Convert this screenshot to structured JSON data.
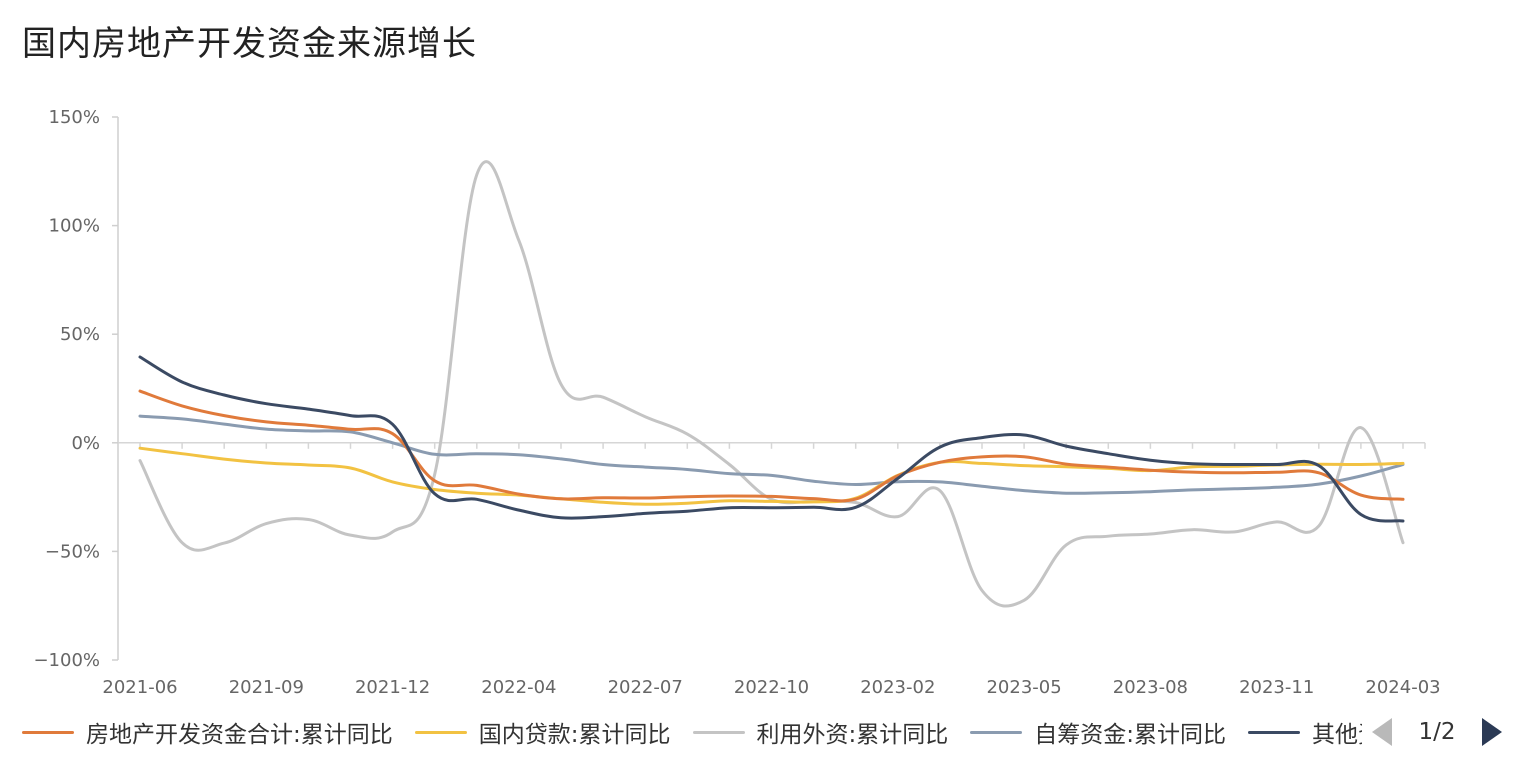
{
  "chart_data": {
    "type": "line",
    "title": "国内房地产开发资金来源增长",
    "x": [
      "2021-06",
      "2021-07",
      "2021-08",
      "2021-09",
      "2021-10",
      "2021-11",
      "2021-12",
      "2022-02",
      "2022-03",
      "2022-04",
      "2022-05",
      "2022-06",
      "2022-07",
      "2022-08",
      "2022-09",
      "2022-10",
      "2022-11",
      "2022-12",
      "2023-02",
      "2023-03",
      "2023-04",
      "2023-05",
      "2023-06",
      "2023-07",
      "2023-08",
      "2023-09",
      "2023-10",
      "2023-11",
      "2023-12",
      "2024-02",
      "2024-03"
    ],
    "x_tick_labels": [
      "2021-06",
      "2021-09",
      "2021-12",
      "2022-04",
      "2022-07",
      "2022-10",
      "2023-02",
      "2023-05",
      "2023-08",
      "2023-11",
      "2024-03"
    ],
    "ylim": [
      -100,
      150
    ],
    "y_ticks": [
      150,
      100,
      50,
      0,
      -50,
      -100
    ],
    "y_tick_labels": [
      "150%",
      "100%",
      "50%",
      "0%",
      "−50%",
      "−100%"
    ],
    "grid": false,
    "legend_position": "bottom",
    "series": [
      {
        "name": "房地产开发资金合计:累计同比",
        "color": "#e07a3b",
        "values": [
          23.8,
          17.0,
          12.5,
          9.6,
          8.1,
          6.2,
          4.2,
          -17.5,
          -19.6,
          -23.6,
          -25.8,
          -25.3,
          -25.4,
          -24.8,
          -24.5,
          -24.7,
          -25.7,
          -25.9,
          -15.2,
          -9.0,
          -6.5,
          -6.4,
          -9.8,
          -11.2,
          -12.6,
          -13.5,
          -13.8,
          -13.6,
          -13.8,
          -24.1,
          -26.0
        ]
      },
      {
        "name": "国内贷款:累计同比",
        "color": "#f2c242",
        "values": [
          -2.5,
          -5.0,
          -7.5,
          -9.3,
          -10.2,
          -11.6,
          -18.0,
          -21.5,
          -23.2,
          -24.1,
          -25.8,
          -27.4,
          -28.3,
          -27.8,
          -26.7,
          -27.0,
          -27.2,
          -25.5,
          -15.0,
          -9.0,
          -9.5,
          -10.5,
          -11.0,
          -11.8,
          -12.8,
          -11.1,
          -10.8,
          -10.2,
          -9.9,
          -10.0,
          -9.5
        ]
      },
      {
        "name": "利用外资:累计同比",
        "color": "#c4c4c4",
        "values": [
          -8.2,
          -46.0,
          -46.2,
          -37.2,
          -35.3,
          -42.5,
          -41.0,
          -14.5,
          123.5,
          93.1,
          27.0,
          21.0,
          12.0,
          4.0,
          -10.0,
          -26.0,
          -27.0,
          -27.5,
          -34.0,
          -22.0,
          -68.0,
          -72.5,
          -47.0,
          -43.0,
          -42.0,
          -40.0,
          -41.0,
          -36.4,
          -38.3,
          7.0,
          -46.0
        ]
      },
      {
        "name": "自筹资金:累计同比",
        "color": "#8a9bb0",
        "values": [
          12.3,
          11.0,
          8.6,
          6.3,
          5.5,
          5.0,
          0.0,
          -5.3,
          -5.0,
          -5.5,
          -7.4,
          -10.0,
          -11.2,
          -12.3,
          -14.2,
          -15.0,
          -17.7,
          -19.2,
          -17.9,
          -18.0,
          -20.0,
          -22.0,
          -23.2,
          -23.0,
          -22.5,
          -21.7,
          -21.2,
          -20.5,
          -19.0,
          -15.3,
          -10.0
        ]
      },
      {
        "name": "其他资金:累计同比",
        "color": "#3b4a63",
        "values": [
          39.5,
          28.0,
          22.0,
          18.0,
          15.5,
          12.5,
          8.5,
          -23.5,
          -26.0,
          -31.0,
          -34.5,
          -34.0,
          -32.5,
          -31.5,
          -29.9,
          -29.9,
          -29.7,
          -29.7,
          -16.4,
          -2.0,
          2.4,
          3.6,
          -1.5,
          -5.0,
          -8.0,
          -9.6,
          -10.0,
          -10.0,
          -10.5,
          -33.0,
          -36.0
        ]
      }
    ],
    "legend_pager": "1/2"
  }
}
